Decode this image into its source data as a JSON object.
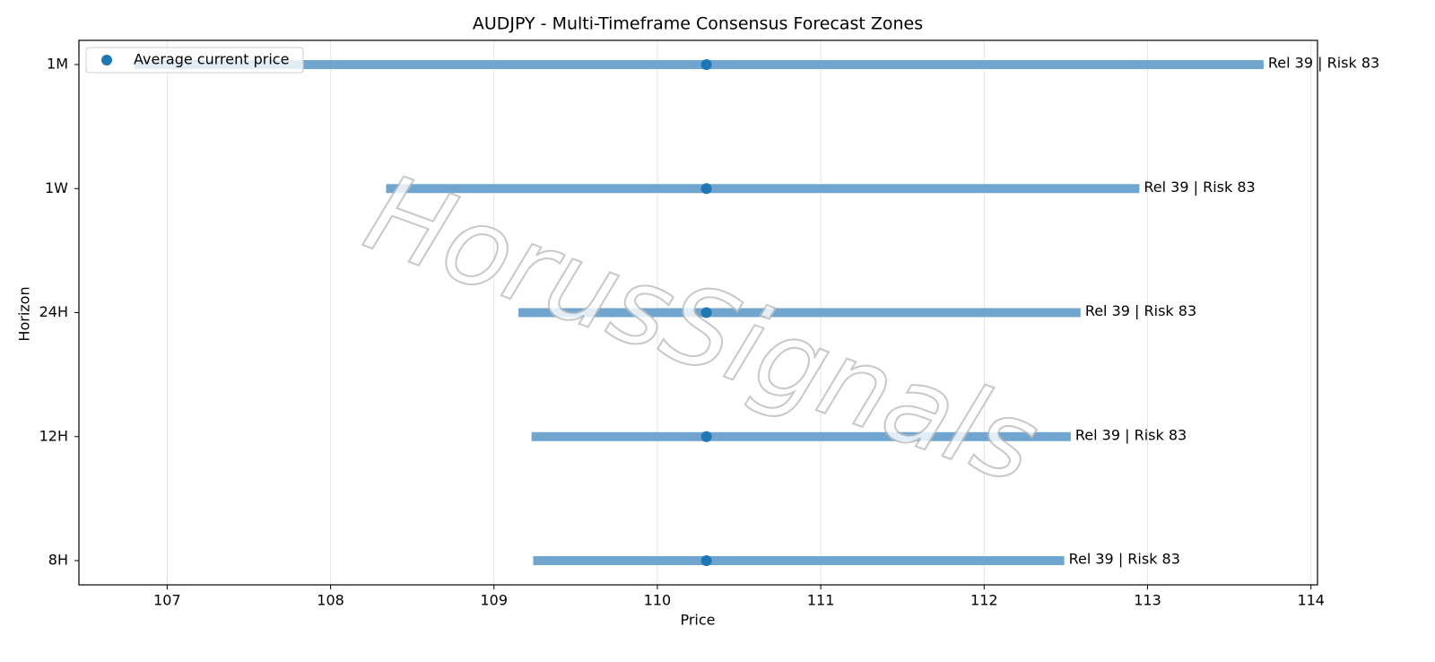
{
  "chart_data": {
    "type": "range",
    "title": "AUDJPY - Multi-Timeframe Consensus Forecast Zones",
    "xlabel": "Price",
    "ylabel": "Horizon",
    "watermark": "HorusSignals",
    "categories": [
      "1M",
      "1W",
      "24H",
      "12H",
      "8H"
    ],
    "range_color": "#6fa5cf",
    "series": [
      {
        "name": "Average current price",
        "color": "#1f77b4",
        "values": [
          110.3,
          110.3,
          110.3,
          110.3,
          110.3
        ]
      }
    ],
    "lows": [
      106.8,
      108.34,
      109.15,
      109.23,
      109.24
    ],
    "highs": [
      113.71,
      112.95,
      112.59,
      112.53,
      112.49
    ],
    "annotations": [
      "Rel 39 | Risk 83",
      "Rel 39 | Risk 83",
      "Rel 39 | Risk 83",
      "Rel 39 | Risk 83",
      "Rel 39 | Risk 83"
    ],
    "xlim": [
      106.46,
      114.04
    ],
    "xticks": [
      107,
      108,
      109,
      110,
      111,
      112,
      113,
      114
    ],
    "grid": true,
    "legend": "upper left"
  }
}
